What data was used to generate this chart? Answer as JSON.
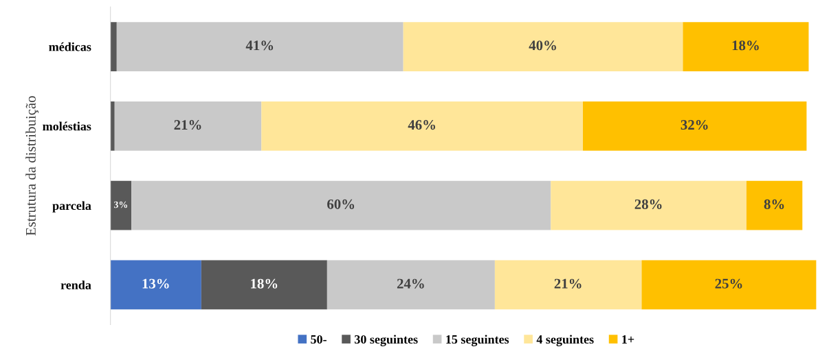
{
  "chart_data": {
    "type": "bar",
    "orientation": "horizontal",
    "stacked": true,
    "ylabel": "Estrutura da distribuição",
    "categories": [
      "médicas",
      "moléstias",
      "parcela",
      "renda"
    ],
    "legend": "bottom",
    "grid": false,
    "series": [
      {
        "name": "50-",
        "color": "#4472c4",
        "values": [
          0,
          0,
          0,
          13
        ],
        "value_labels": [
          null,
          null,
          null,
          "13%"
        ]
      },
      {
        "name": "30 seguintes",
        "color": "#595959",
        "values": [
          0.9,
          0.6,
          3,
          18
        ],
        "value_labels": [
          null,
          null,
          "3%",
          "18%"
        ]
      },
      {
        "name": "15 seguintes",
        "color": "#c9c9c9",
        "values": [
          41,
          21,
          60,
          24
        ],
        "value_labels": [
          "41%",
          "21%",
          "60%",
          "24%"
        ]
      },
      {
        "name": "4 seguintes",
        "color": "#ffe699",
        "values": [
          40,
          46,
          28,
          21
        ],
        "value_labels": [
          "40%",
          "46%",
          "28%",
          "21%"
        ]
      },
      {
        "name": "1+",
        "color": "#ffc000",
        "values": [
          18,
          32,
          8,
          25
        ],
        "value_labels": [
          "18%",
          "32%",
          "8%",
          "25%"
        ]
      }
    ]
  }
}
